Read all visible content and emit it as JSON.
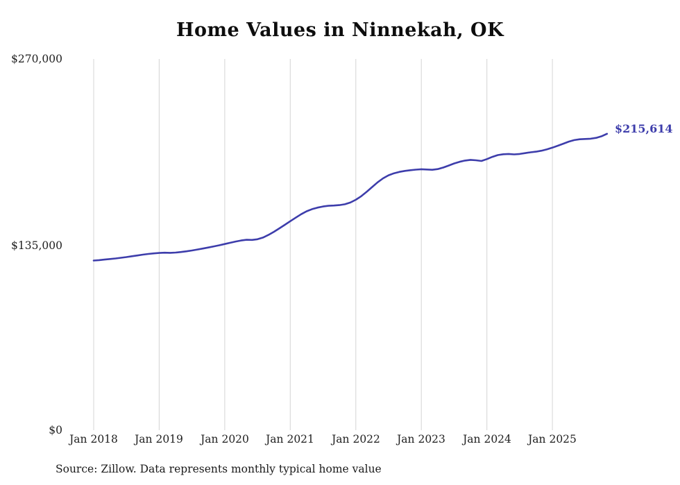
{
  "title": "Home Values in Ninnekah, OK",
  "end_label": "$215,614",
  "source_note": "Source: Zillow. Data represents monthly typical home value",
  "chart_data": {
    "type": "line",
    "title": "Home Values in Ninnekah, OK",
    "xlabel": "",
    "ylabel": "",
    "ylim": [
      0,
      270000
    ],
    "y_tick_labels": [
      "$0",
      "$135,000",
      "$270,000"
    ],
    "y_tick_values": [
      0,
      135000,
      270000
    ],
    "x_tick_labels": [
      "Jan 2018",
      "Jan 2019",
      "Jan 2020",
      "Jan 2021",
      "Jan 2022",
      "Jan 2023",
      "Jan 2024",
      "Jan 2025"
    ],
    "grid": "vertical-only",
    "gridline_color": "#d4d4d4",
    "legend_position": "none",
    "line_color": "#3d3dab",
    "annotation": "$215,614",
    "series": [
      {
        "name": "Monthly typical home value",
        "final_value": 215614,
        "x": [
          "2018-01",
          "2018-02",
          "2018-03",
          "2018-04",
          "2018-05",
          "2018-06",
          "2018-07",
          "2018-08",
          "2018-09",
          "2018-10",
          "2018-11",
          "2018-12",
          "2019-01",
          "2019-02",
          "2019-03",
          "2019-04",
          "2019-05",
          "2019-06",
          "2019-07",
          "2019-08",
          "2019-09",
          "2019-10",
          "2019-11",
          "2019-12",
          "2020-01",
          "2020-02",
          "2020-03",
          "2020-04",
          "2020-05",
          "2020-06",
          "2020-07",
          "2020-08",
          "2020-09",
          "2020-10",
          "2020-11",
          "2020-12",
          "2021-01",
          "2021-02",
          "2021-03",
          "2021-04",
          "2021-05",
          "2021-06",
          "2021-07",
          "2021-08",
          "2021-09",
          "2021-10",
          "2021-11",
          "2021-12",
          "2022-01",
          "2022-02",
          "2022-03",
          "2022-04",
          "2022-05",
          "2022-06",
          "2022-07",
          "2022-08",
          "2022-09",
          "2022-10",
          "2022-11",
          "2022-12",
          "2023-01",
          "2023-02",
          "2023-03",
          "2023-04",
          "2023-05",
          "2023-06",
          "2023-07",
          "2023-08",
          "2023-09",
          "2023-10",
          "2023-11",
          "2023-12",
          "2024-01",
          "2024-02",
          "2024-03",
          "2024-04",
          "2024-05",
          "2024-06",
          "2024-07",
          "2024-08",
          "2024-09",
          "2024-10",
          "2024-11",
          "2024-12",
          "2025-01",
          "2025-02",
          "2025-03",
          "2025-04",
          "2025-05",
          "2025-06",
          "2025-07",
          "2025-08",
          "2025-09",
          "2025-10",
          "2025-11"
        ],
        "values": [
          123400,
          123700,
          124100,
          124500,
          124900,
          125400,
          125900,
          126500,
          127100,
          127700,
          128200,
          128600,
          128900,
          129100,
          129000,
          129200,
          129600,
          130100,
          130700,
          131400,
          132100,
          132900,
          133700,
          134500,
          135400,
          136300,
          137200,
          138000,
          138500,
          138400,
          138900,
          140100,
          142000,
          144300,
          146800,
          149400,
          152000,
          154600,
          157100,
          159200,
          160800,
          161900,
          162700,
          163200,
          163400,
          163700,
          164300,
          165600,
          167600,
          170200,
          173400,
          176900,
          180300,
          183200,
          185400,
          186900,
          187900,
          188600,
          189100,
          189500,
          189800,
          189600,
          189400,
          189900,
          191000,
          192500,
          194000,
          195200,
          196100,
          196600,
          196300,
          195800,
          197200,
          198800,
          200100,
          200700,
          200900,
          200600,
          200900,
          201500,
          202100,
          202600,
          203300,
          204300,
          205500,
          206900,
          208400,
          209900,
          211000,
          211600,
          211800,
          212000,
          212600,
          213800,
          215614
        ]
      }
    ]
  }
}
